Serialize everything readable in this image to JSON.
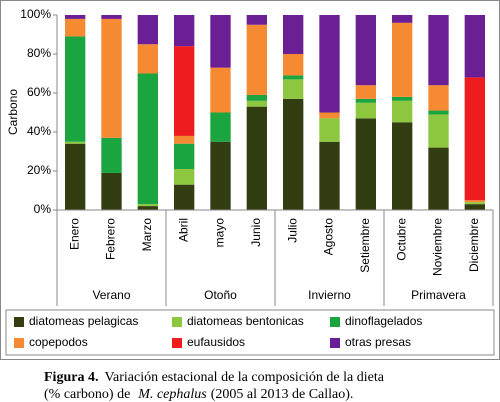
{
  "chart_data": {
    "type": "stacked-bar",
    "ylabel": "Carbono",
    "categories": [
      "Enero",
      "Febrero",
      "Marzo",
      "Abril",
      "mayo",
      "Junio",
      "Julio",
      "Agosto",
      "Setiembre",
      "Octubre",
      "Noviembre",
      "Diciembre"
    ],
    "groups": [
      {
        "name": "Verano",
        "size": 3
      },
      {
        "name": "Otoño",
        "size": 3
      },
      {
        "name": "Invierno",
        "size": 3
      },
      {
        "name": "Primavera",
        "size": 3
      }
    ],
    "series": [
      {
        "name": "diatomeas pelagicas",
        "color": "#333d12",
        "values": [
          34,
          19,
          2,
          13,
          35,
          53,
          57,
          35,
          47,
          45,
          32,
          3
        ]
      },
      {
        "name": "diatomeas bentonicas",
        "color": "#8dc63f",
        "values": [
          1,
          0,
          1,
          8,
          0,
          3,
          10,
          12,
          8,
          11,
          17,
          1
        ]
      },
      {
        "name": "dinoflagelados",
        "color": "#1aa541",
        "values": [
          54,
          18,
          67,
          13,
          15,
          3,
          2,
          0,
          2,
          2,
          2,
          0
        ]
      },
      {
        "name": "copepodos",
        "color": "#f58a33",
        "values": [
          9,
          61,
          15,
          4,
          23,
          36,
          11,
          3,
          7,
          38,
          13,
          1
        ]
      },
      {
        "name": "eufausidos",
        "color": "#ee1c1c",
        "values": [
          0,
          0,
          0,
          46,
          0,
          0,
          0,
          0,
          0,
          0,
          0,
          63
        ]
      },
      {
        "name": "otras presas",
        "color": "#6b1f94",
        "values": [
          2,
          2,
          15,
          16,
          27,
          5,
          20,
          50,
          36,
          4,
          36,
          32
        ]
      }
    ],
    "ylim": [
      0,
      100
    ],
    "yticks": [
      {
        "value": 0,
        "label": "0%"
      },
      {
        "value": 20,
        "label": "20%"
      },
      {
        "value": 40,
        "label": "40%"
      },
      {
        "value": 60,
        "label": "60%"
      },
      {
        "value": 80,
        "label": "80%"
      },
      {
        "value": 100,
        "label": "100%"
      }
    ],
    "grid": false
  },
  "caption": {
    "label": "Figura 4.",
    "line1": "Variación estacional de la composición de la dieta",
    "line2_a": "(% carbono) de",
    "species": "M. cephalus",
    "line2_b": "(2005 al 2013 de Callao)."
  }
}
